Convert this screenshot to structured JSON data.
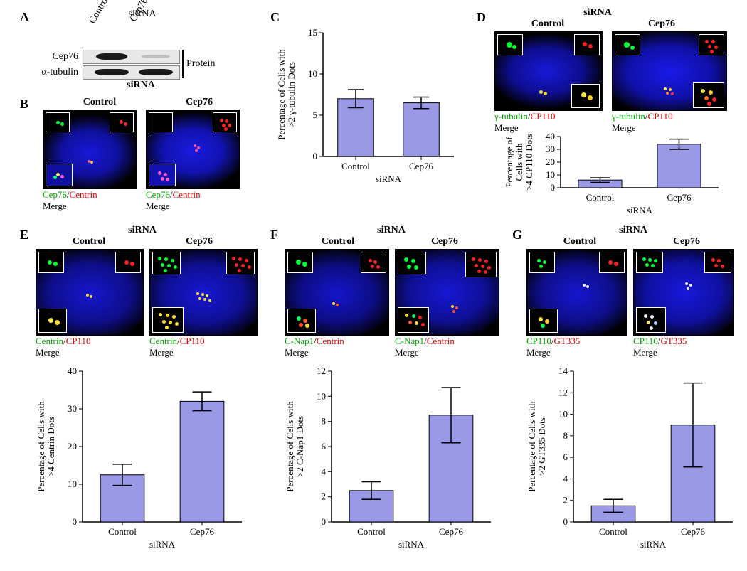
{
  "panel_labels": {
    "A": "A",
    "B": "B",
    "C": "C",
    "D": "D",
    "E": "E",
    "F": "F",
    "G": "G"
  },
  "sirna_header": "siRNA",
  "conditions": {
    "control": "Control",
    "cep76": "Cep76"
  },
  "blot": {
    "protein_label": "Protein",
    "rows": [
      {
        "name": "Cep76",
        "bands": [
          {
            "intensity": 0.95,
            "color": "#222"
          },
          {
            "intensity": 0.08,
            "color": "#555"
          }
        ]
      },
      {
        "name": "α-tubulin",
        "bands": [
          {
            "intensity": 0.9,
            "color": "#222"
          },
          {
            "intensity": 0.9,
            "color": "#222"
          }
        ]
      }
    ],
    "xlabel": "siRNA"
  },
  "micro": {
    "B": {
      "g": "Cep76",
      "r": "Centrin",
      "merge": "Merge"
    },
    "D": {
      "g": "γ-tubulin",
      "r": "CP110",
      "merge": "Merge"
    },
    "E": {
      "g": "Centrin",
      "r": "CP110",
      "merge": "Merge"
    },
    "F": {
      "g": "C-Nap1",
      "r": "Centrin",
      "merge": "Merge"
    },
    "G": {
      "g": "CP110",
      "r": "GT335",
      "merge": "Merge"
    }
  },
  "charts": {
    "bar_fill": "#9999e6",
    "bar_stroke": "#000000",
    "bg": "#ffffff",
    "C": {
      "ylabel_lines": [
        "Percentage of Cells with",
        ">2 γ-tubulin Dots"
      ],
      "xlabel": "siRNA",
      "categories": [
        "Control",
        "Cep76"
      ],
      "values": [
        7.0,
        6.5
      ],
      "errors": [
        1.1,
        0.7
      ],
      "ylim": [
        0,
        15
      ],
      "ytick_step": 5,
      "bar_width": 0.55
    },
    "D": {
      "ylabel_lines": [
        "Percentage of",
        "Cells with",
        ">4 CP110 Dots"
      ],
      "xlabel": "siRNA",
      "categories": [
        "Control",
        "Cep76"
      ],
      "values": [
        6.0,
        34.0
      ],
      "errors": [
        1.8,
        4.0
      ],
      "ylim": [
        0,
        40
      ],
      "ytick_step": 10,
      "bar_width": 0.55
    },
    "E": {
      "ylabel_lines": [
        "Percentage of Cells with",
        ">4 Centrin Dots"
      ],
      "xlabel": "siRNA",
      "categories": [
        "Control",
        "Cep76"
      ],
      "values": [
        12.5,
        32.0
      ],
      "errors": [
        2.8,
        2.5
      ],
      "ylim": [
        0,
        40
      ],
      "ytick_step": 10,
      "bar_width": 0.55
    },
    "F": {
      "ylabel_lines": [
        "Percentage of Cells with",
        ">2 C-Nap1 Dots"
      ],
      "xlabel": "siRNA",
      "categories": [
        "Control",
        "Cep76"
      ],
      "values": [
        2.5,
        8.5
      ],
      "errors": [
        0.7,
        2.2
      ],
      "ylim": [
        0,
        12
      ],
      "ytick_step": 2,
      "bar_width": 0.55
    },
    "G": {
      "ylabel_lines": [
        "Percentage of Cells with",
        ">2 GT335 Dots"
      ],
      "xlabel": "siRNA",
      "categories": [
        "Control",
        "Cep76"
      ],
      "values": [
        1.5,
        9.0
      ],
      "errors": [
        0.6,
        3.9
      ],
      "ylim": [
        0,
        14
      ],
      "ytick_step": 2,
      "bar_width": 0.55
    }
  },
  "colors": {
    "nucleus": "#1414c8",
    "nucleus_dim": "#0f0f90",
    "green_dot": "#00ff33",
    "red_dot": "#ff2020",
    "yellow_dot": "#ffee44",
    "magenta_dot": "#ff55dd",
    "white_dot": "#f8f8ff"
  }
}
